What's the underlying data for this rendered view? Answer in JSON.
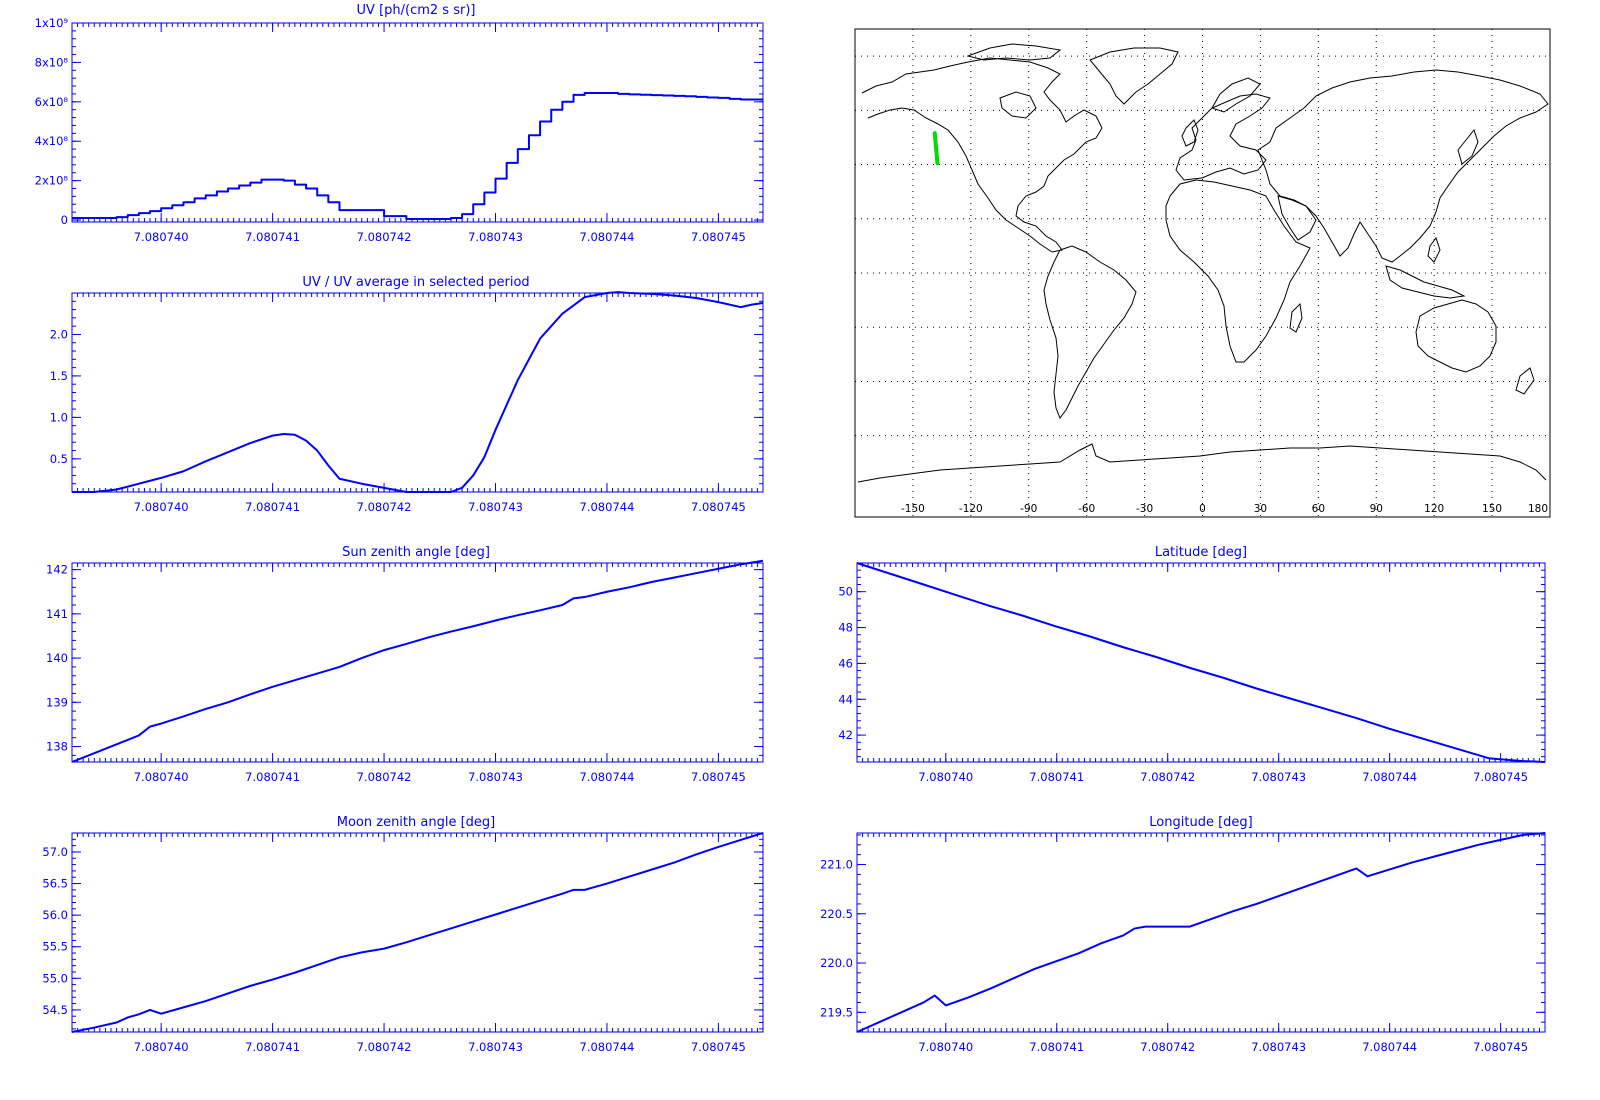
{
  "colors": {
    "plot": "#0000ff",
    "track": "#00dd00",
    "map": "#000000",
    "grid": "#000000"
  },
  "x_ticks": [
    "7.080740",
    "7.080741",
    "7.080742",
    "7.080743",
    "7.080744",
    "7.080745"
  ],
  "chart_data": [
    {
      "id": "uv",
      "type": "line",
      "step": true,
      "title": "UV [ph/(cm2 s sr)]",
      "xlim": [
        7.0807392,
        7.0807454
      ],
      "ylim": [
        -10000000,
        1000000000
      ],
      "yticks": [
        {
          "value": 0,
          "label": "0"
        },
        {
          "value": 200000000,
          "label": "2x10⁸"
        },
        {
          "value": 400000000,
          "label": "4x10⁸"
        },
        {
          "value": 600000000,
          "label": "6x10⁸"
        },
        {
          "value": 800000000,
          "label": "8x10⁸"
        },
        {
          "value": 1000000000,
          "label": "1x10⁹"
        }
      ],
      "x": [
        7.0807392,
        7.0807394,
        7.0807396,
        7.0807397,
        7.0807398,
        7.0807399,
        7.08074,
        7.0807401,
        7.0807402,
        7.0807403,
        7.0807404,
        7.0807405,
        7.0807406,
        7.0807407,
        7.0807408,
        7.0807409,
        7.080741,
        7.0807411,
        7.0807412,
        7.0807413,
        7.0807414,
        7.0807415,
        7.0807416,
        7.0807418,
        7.080742,
        7.0807422,
        7.0807424,
        7.0807426,
        7.0807427,
        7.0807428,
        7.0807429,
        7.080743,
        7.0807431,
        7.0807432,
        7.0807433,
        7.0807434,
        7.0807435,
        7.0807436,
        7.0807437,
        7.0807438,
        7.0807439,
        7.080744,
        7.0807441,
        7.0807442,
        7.0807443,
        7.0807444,
        7.0807445,
        7.0807446,
        7.0807447,
        7.0807448,
        7.0807449,
        7.080745,
        7.0807451,
        7.0807452,
        7.0807454
      ],
      "y": [
        10000000,
        10000000,
        15000000,
        25000000,
        35000000,
        45000000,
        60000000,
        75000000,
        90000000,
        110000000,
        125000000,
        145000000,
        160000000,
        175000000,
        190000000,
        205000000,
        205000000,
        200000000,
        180000000,
        160000000,
        125000000,
        90000000,
        50000000,
        50000000,
        20000000,
        5000000,
        5000000,
        10000000,
        30000000,
        80000000,
        140000000,
        210000000,
        290000000,
        360000000,
        430000000,
        500000000,
        560000000,
        600000000,
        635000000,
        645000000,
        645000000,
        645000000,
        640000000,
        638000000,
        636000000,
        634000000,
        632000000,
        630000000,
        628000000,
        625000000,
        622000000,
        620000000,
        615000000,
        612000000,
        612000000
      ]
    },
    {
      "id": "uv_ratio",
      "type": "line",
      "title": "UV / UV average in selected period",
      "xlim": [
        7.0807392,
        7.0807454
      ],
      "ylim": [
        0.1,
        2.5
      ],
      "yticks": [
        {
          "value": 0.5,
          "label": "0.5"
        },
        {
          "value": 1.0,
          "label": "1.0"
        },
        {
          "value": 1.5,
          "label": "1.5"
        },
        {
          "value": 2.0,
          "label": "2.0"
        }
      ],
      "x": [
        7.0807392,
        7.0807394,
        7.0807396,
        7.0807398,
        7.08074,
        7.0807402,
        7.0807404,
        7.0807406,
        7.0807408,
        7.080741,
        7.0807411,
        7.0807412,
        7.0807413,
        7.0807414,
        7.0807415,
        7.0807416,
        7.0807418,
        7.080742,
        7.0807422,
        7.0807424,
        7.0807426,
        7.0807427,
        7.0807428,
        7.0807429,
        7.080743,
        7.0807432,
        7.0807434,
        7.0807436,
        7.0807438,
        7.080744,
        7.0807441,
        7.0807442,
        7.0807444,
        7.0807446,
        7.0807448,
        7.080745,
        7.0807452,
        7.0807453,
        7.0807454
      ],
      "y": [
        0.1,
        0.1,
        0.13,
        0.2,
        0.27,
        0.35,
        0.47,
        0.58,
        0.69,
        0.78,
        0.8,
        0.79,
        0.72,
        0.6,
        0.42,
        0.26,
        0.2,
        0.15,
        0.1,
        0.1,
        0.1,
        0.15,
        0.3,
        0.52,
        0.85,
        1.45,
        1.95,
        2.25,
        2.45,
        2.5,
        2.51,
        2.5,
        2.49,
        2.47,
        2.44,
        2.39,
        2.33,
        2.36,
        2.38
      ]
    },
    {
      "id": "sun_zenith",
      "type": "line",
      "title": "Sun zenith angle [deg]",
      "xlim": [
        7.0807392,
        7.0807454
      ],
      "ylim": [
        137.65,
        142.15
      ],
      "yticks": [
        {
          "value": 138,
          "label": "138"
        },
        {
          "value": 139,
          "label": "139"
        },
        {
          "value": 140,
          "label": "140"
        },
        {
          "value": 141,
          "label": "141"
        },
        {
          "value": 142,
          "label": "142"
        }
      ],
      "x": [
        7.0807392,
        7.0807394,
        7.0807396,
        7.0807398,
        7.0807399,
        7.08074,
        7.0807402,
        7.0807404,
        7.0807406,
        7.0807408,
        7.080741,
        7.0807412,
        7.0807414,
        7.0807416,
        7.0807418,
        7.080742,
        7.0807422,
        7.0807424,
        7.0807426,
        7.0807428,
        7.080743,
        7.0807432,
        7.0807434,
        7.0807436,
        7.0807437,
        7.0807438,
        7.080744,
        7.0807442,
        7.0807444,
        7.0807446,
        7.0807448,
        7.080745,
        7.0807452,
        7.0807454
      ],
      "y": [
        137.65,
        137.85,
        138.05,
        138.25,
        138.45,
        138.52,
        138.68,
        138.85,
        139.0,
        139.18,
        139.35,
        139.5,
        139.65,
        139.8,
        140.0,
        140.18,
        140.32,
        140.47,
        140.6,
        140.72,
        140.85,
        140.97,
        141.08,
        141.2,
        141.35,
        141.38,
        141.5,
        141.6,
        141.72,
        141.82,
        141.92,
        142.02,
        142.12,
        142.2
      ]
    },
    {
      "id": "latitude",
      "type": "line",
      "title": "Latitude [deg]",
      "xlim": [
        7.0807392,
        7.0807454
      ],
      "ylim": [
        40.5,
        51.6
      ],
      "yticks": [
        {
          "value": 42,
          "label": "42"
        },
        {
          "value": 44,
          "label": "44"
        },
        {
          "value": 46,
          "label": "46"
        },
        {
          "value": 48,
          "label": "48"
        },
        {
          "value": 50,
          "label": "50"
        }
      ],
      "x": [
        7.0807392,
        7.0807395,
        7.0807398,
        7.0807401,
        7.0807404,
        7.0807407,
        7.080741,
        7.0807413,
        7.0807416,
        7.0807419,
        7.0807422,
        7.0807425,
        7.0807428,
        7.0807431,
        7.0807434,
        7.0807437,
        7.080744,
        7.0807443,
        7.0807446,
        7.0807449,
        7.0807452,
        7.0807454
      ],
      "y": [
        51.6,
        51.0,
        50.4,
        49.8,
        49.2,
        48.65,
        48.05,
        47.5,
        46.9,
        46.35,
        45.75,
        45.2,
        44.6,
        44.05,
        43.5,
        42.95,
        42.35,
        41.8,
        41.25,
        40.7,
        40.55,
        40.5
      ]
    },
    {
      "id": "moon_zenith",
      "type": "line",
      "title": "Moon zenith angle [deg]",
      "xlim": [
        7.0807392,
        7.0807454
      ],
      "ylim": [
        54.15,
        57.3
      ],
      "yticks": [
        {
          "value": 54.5,
          "label": "54.5"
        },
        {
          "value": 55.0,
          "label": "55.0"
        },
        {
          "value": 55.5,
          "label": "55.5"
        },
        {
          "value": 56.0,
          "label": "56.0"
        },
        {
          "value": 56.5,
          "label": "56.5"
        },
        {
          "value": 57.0,
          "label": "57.0"
        }
      ],
      "x": [
        7.0807392,
        7.0807394,
        7.0807396,
        7.0807397,
        7.0807398,
        7.0807399,
        7.08074,
        7.0807402,
        7.0807404,
        7.0807406,
        7.0807408,
        7.080741,
        7.0807412,
        7.0807414,
        7.0807416,
        7.0807418,
        7.080742,
        7.0807422,
        7.0807424,
        7.0807426,
        7.0807428,
        7.080743,
        7.0807432,
        7.0807434,
        7.0807436,
        7.0807437,
        7.0807438,
        7.080744,
        7.0807442,
        7.0807444,
        7.0807446,
        7.0807448,
        7.080745,
        7.0807452,
        7.0807454
      ],
      "y": [
        54.15,
        54.22,
        54.3,
        54.38,
        54.43,
        54.5,
        54.44,
        54.54,
        54.64,
        54.76,
        54.88,
        54.98,
        55.09,
        55.21,
        55.33,
        55.41,
        55.47,
        55.57,
        55.68,
        55.79,
        55.9,
        56.01,
        56.12,
        56.23,
        56.34,
        56.4,
        56.4,
        56.5,
        56.61,
        56.72,
        56.83,
        56.96,
        57.08,
        57.19,
        57.3
      ]
    },
    {
      "id": "longitude",
      "type": "line",
      "title": "Longitude [deg]",
      "xlim": [
        7.0807392,
        7.0807454
      ],
      "ylim": [
        219.3,
        221.32
      ],
      "yticks": [
        {
          "value": 219.5,
          "label": "219.5"
        },
        {
          "value": 220.0,
          "label": "220.0"
        },
        {
          "value": 220.5,
          "label": "220.5"
        },
        {
          "value": 221.0,
          "label": "221.0"
        }
      ],
      "x": [
        7.0807392,
        7.0807394,
        7.0807396,
        7.0807398,
        7.0807399,
        7.08074,
        7.0807402,
        7.0807404,
        7.0807406,
        7.0807408,
        7.080741,
        7.0807412,
        7.0807414,
        7.0807416,
        7.0807417,
        7.0807418,
        7.080742,
        7.0807422,
        7.0807424,
        7.0807426,
        7.0807428,
        7.080743,
        7.0807432,
        7.0807434,
        7.0807436,
        7.0807437,
        7.0807438,
        7.080744,
        7.0807442,
        7.0807444,
        7.0807446,
        7.0807448,
        7.080745,
        7.0807452,
        7.0807454
      ],
      "y": [
        219.3,
        219.4,
        219.5,
        219.6,
        219.67,
        219.57,
        219.65,
        219.74,
        219.84,
        219.94,
        220.02,
        220.1,
        220.2,
        220.28,
        220.35,
        220.37,
        220.37,
        220.37,
        220.45,
        220.53,
        220.6,
        220.68,
        220.76,
        220.84,
        220.92,
        220.96,
        220.88,
        220.95,
        221.02,
        221.08,
        221.14,
        221.2,
        221.25,
        221.3,
        221.32
      ]
    }
  ],
  "map": {
    "lon_ticks": [
      "-150",
      "-120",
      "-90",
      "-60",
      "-30",
      "0",
      "30",
      "60",
      "90",
      "120",
      "150",
      "180"
    ],
    "track": {
      "lon": [
        -138.7,
        -137.3
      ],
      "lat": [
        51.6,
        40.5
      ]
    }
  }
}
